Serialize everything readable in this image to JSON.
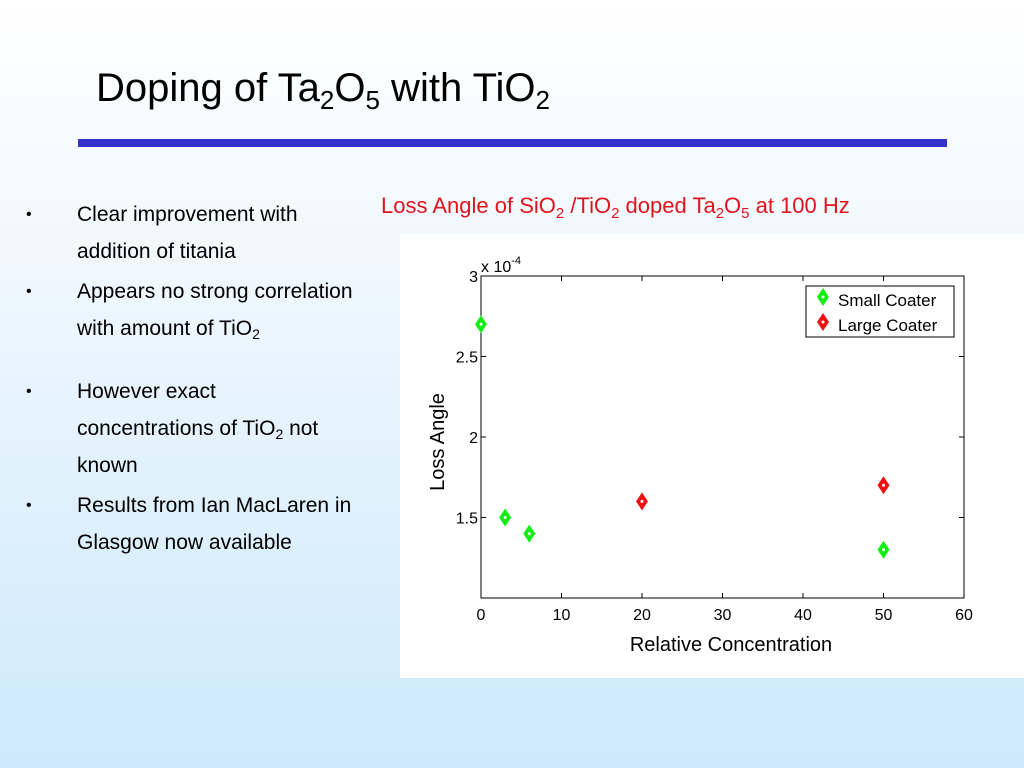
{
  "slide": {
    "title_parts": [
      "Doping of Ta",
      "2",
      "O",
      "5",
      " with TiO",
      "2"
    ],
    "bullets": [
      {
        "parts": [
          "Clear improvement with addition of titania"
        ]
      },
      {
        "parts": [
          "Appears no strong correlation with amount of TiO",
          "2"
        ]
      },
      {
        "parts": [
          "However exact concentrations of TiO",
          "2",
          " not known"
        ]
      },
      {
        "parts": [
          "Results from Ian MacLaren in Glasgow now available"
        ]
      }
    ],
    "chart_title_parts": [
      "Loss Angle of SiO",
      "2",
      " /TiO",
      "2",
      " doped Ta",
      "2",
      "O",
      "5",
      " at 100 Hz"
    ],
    "accent_color": "#3333cc",
    "chart_title_color": "#e0141e"
  },
  "chart_data": {
    "type": "scatter",
    "xlabel": "Relative Concentration",
    "ylabel": "Loss Angle",
    "y_multiplier_base": "x 10",
    "y_multiplier_exp": "-4",
    "xlim": [
      0,
      60
    ],
    "ylim": [
      1.0,
      3.0
    ],
    "x_ticks": [
      0,
      10,
      20,
      30,
      40,
      50,
      60
    ],
    "y_ticks": [
      1.5,
      2,
      2.5,
      3
    ],
    "y_tick_labels": [
      "1.5",
      "2",
      "2.5",
      "3"
    ],
    "grid": false,
    "legend_position": "top-right",
    "series": [
      {
        "name": "Small Coater",
        "color": "#11ee11",
        "marker": "diamond",
        "x": [
          0,
          3,
          6,
          50
        ],
        "y": [
          2.7,
          1.5,
          1.4,
          1.3
        ]
      },
      {
        "name": "Large Coater",
        "color": "#ee1111",
        "marker": "diamond",
        "x": [
          20,
          50
        ],
        "y": [
          1.6,
          1.7
        ]
      }
    ]
  }
}
